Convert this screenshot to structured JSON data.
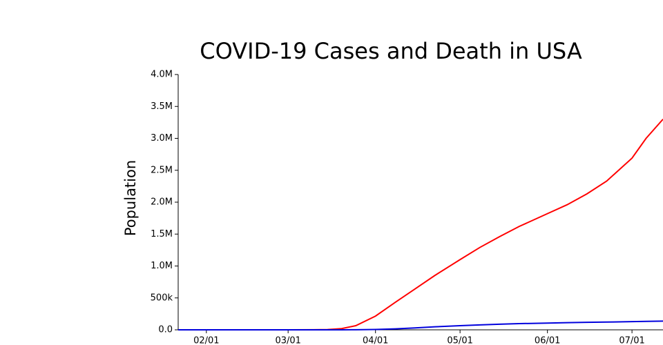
{
  "chart_data": {
    "type": "line",
    "title": "COVID-19 Cases and Death in USA",
    "y_label": "Population",
    "x": [
      "01/22",
      "02/01",
      "02/15",
      "03/01",
      "03/10",
      "03/15",
      "03/20",
      "03/25",
      "04/01",
      "04/08",
      "04/15",
      "04/22",
      "05/01",
      "05/08",
      "05/15",
      "05/22",
      "06/01",
      "06/08",
      "06/15",
      "06/22",
      "07/01",
      "07/06",
      "07/12"
    ],
    "series": [
      {
        "color": "#ff0000",
        "values": [
          0,
          8,
          15,
          75,
          1000,
          3500,
          19000,
          65000,
          215000,
          430000,
          640000,
          850000,
          1100000,
          1290000,
          1460000,
          1620000,
          1820000,
          1960000,
          2130000,
          2330000,
          2690000,
          3000000,
          3300000
        ]
      },
      {
        "color": "#0000dd",
        "values": [
          0,
          0,
          0,
          1,
          30,
          60,
          250,
          1000,
          5000,
          15000,
          30000,
          47000,
          65000,
          77000,
          88000,
          97000,
          106000,
          112000,
          117000,
          121000,
          128000,
          132000,
          136000
        ]
      }
    ],
    "xlim": [
      "01/22",
      "07/12"
    ],
    "xticks": [
      "02/01",
      "03/01",
      "04/01",
      "05/01",
      "06/01",
      "07/01"
    ],
    "ylim": [
      0,
      4000000
    ],
    "yticks": [
      {
        "value": 0,
        "label": "0.0"
      },
      {
        "value": 500000,
        "label": "500k"
      },
      {
        "value": 1000000,
        "label": "1.0M"
      },
      {
        "value": 1500000,
        "label": "1.5M"
      },
      {
        "value": 2000000,
        "label": "2.0M"
      },
      {
        "value": 2500000,
        "label": "2.5M"
      },
      {
        "value": 3000000,
        "label": "3.0M"
      },
      {
        "value": 3500000,
        "label": "3.5M"
      },
      {
        "value": 4000000,
        "label": "4.0M"
      }
    ],
    "grid": false
  }
}
